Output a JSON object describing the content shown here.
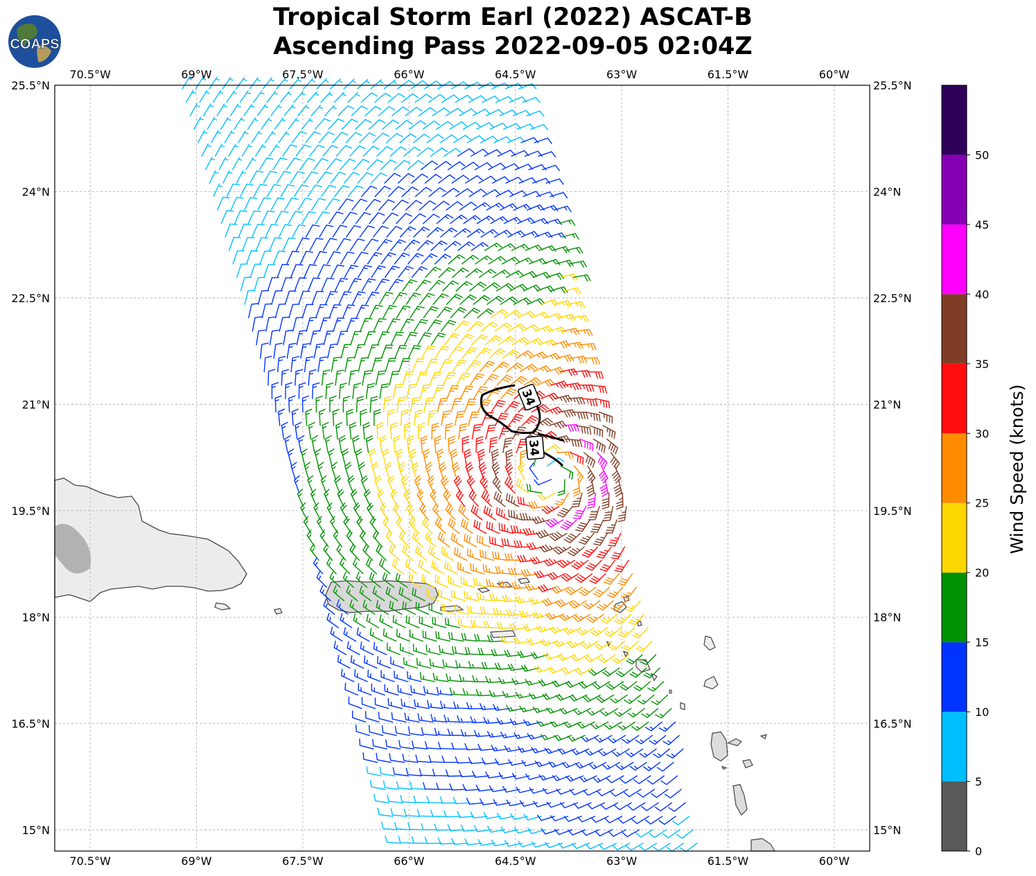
{
  "title": {
    "line1": "Tropical Storm Earl (2022) ASCAT-B",
    "line2": "Ascending Pass 2022-09-05 02:04Z"
  },
  "logo": {
    "text": "COAPS",
    "icon": "globe-icon"
  },
  "map": {
    "lon_range": [
      -71.0,
      -59.5
    ],
    "lat_range": [
      14.7,
      25.5
    ],
    "lon_ticks": [
      "70.5°W",
      "69°W",
      "67.5°W",
      "66°W",
      "64.5°W",
      "63°W",
      "61.5°W",
      "60°W"
    ],
    "lon_tick_values": [
      -70.5,
      -69,
      -67.5,
      -66,
      -64.5,
      -63,
      -61.5,
      -60
    ],
    "lat_ticks": [
      "25.5°N",
      "24°N",
      "22.5°N",
      "21°N",
      "19.5°N",
      "18°N",
      "16.5°N",
      "15°N"
    ],
    "lat_tick_values": [
      25.5,
      24,
      22.5,
      21,
      19.5,
      18,
      16.5,
      15
    ],
    "gridlines": true,
    "storm_center": {
      "lon": -64.0,
      "lat": 20.0
    },
    "contour_label": "34",
    "contour_value": 34
  },
  "colorbar": {
    "label": "Wind Speed (knots)",
    "ticks": [
      "0",
      "5",
      "10",
      "15",
      "20",
      "25",
      "30",
      "35",
      "40",
      "45",
      "50"
    ],
    "tick_values": [
      0,
      5,
      10,
      15,
      20,
      25,
      30,
      35,
      40,
      45,
      50
    ],
    "bins": [
      {
        "min": 0,
        "max": 5,
        "color": "#595959"
      },
      {
        "min": 5,
        "max": 10,
        "color": "#00bfff"
      },
      {
        "min": 10,
        "max": 15,
        "color": "#0033ff"
      },
      {
        "min": 15,
        "max": 20,
        "color": "#009100"
      },
      {
        "min": 20,
        "max": 25,
        "color": "#ffd700"
      },
      {
        "min": 25,
        "max": 30,
        "color": "#ff8c00"
      },
      {
        "min": 30,
        "max": 35,
        "color": "#ff0d0d"
      },
      {
        "min": 35,
        "max": 40,
        "color": "#803d26"
      },
      {
        "min": 40,
        "max": 45,
        "color": "#ff00ff"
      },
      {
        "min": 45,
        "max": 50,
        "color": "#8600b3"
      },
      {
        "min": 50,
        "max": 55,
        "color": "#2e0059"
      }
    ]
  }
}
